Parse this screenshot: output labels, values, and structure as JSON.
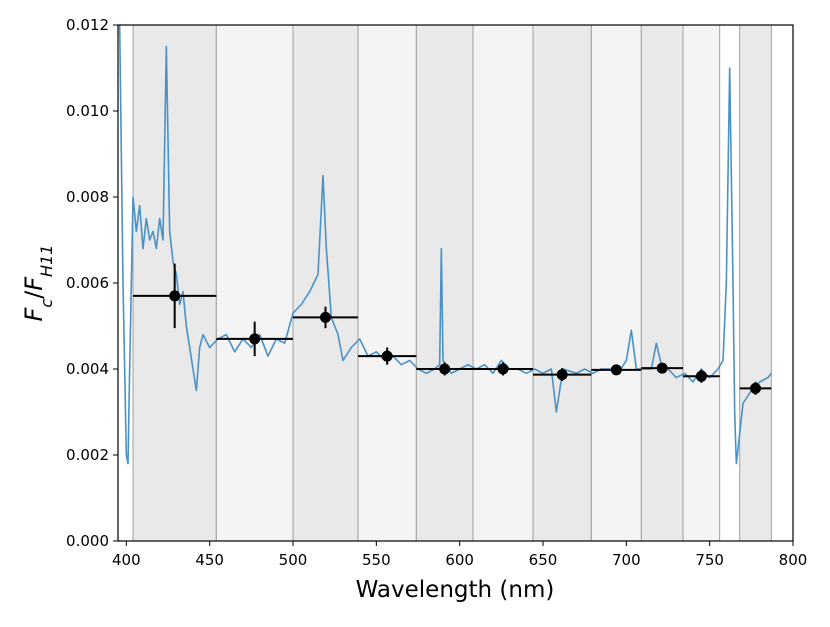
{
  "chart_data": {
    "type": "line",
    "xlabel": "Wavelength (nm)",
    "ylabel": [
      "F",
      "c",
      "/",
      "F",
      "H11"
    ],
    "xlim": [
      395,
      800
    ],
    "ylim": [
      0,
      0.012
    ],
    "xticks": [
      400,
      450,
      500,
      550,
      600,
      650,
      700,
      750,
      800
    ],
    "yticks": [
      {
        "value": 0,
        "label": "0.000"
      },
      {
        "value": 0.002,
        "label": "0.002"
      },
      {
        "value": 0.004,
        "label": "0.004"
      },
      {
        "value": 0.006,
        "label": "0.006"
      },
      {
        "value": 0.008,
        "label": "0.008"
      },
      {
        "value": 0.01,
        "label": "0.010"
      },
      {
        "value": 0.012,
        "label": "0.012"
      }
    ],
    "bands": [
      [
        404,
        454
      ],
      [
        454,
        500
      ],
      [
        500,
        539
      ],
      [
        539,
        574
      ],
      [
        574,
        608
      ],
      [
        608,
        644
      ],
      [
        644,
        679
      ],
      [
        679,
        709
      ],
      [
        709,
        734
      ],
      [
        734,
        756
      ],
      [
        768,
        787
      ]
    ],
    "band_colors": [
      "#e9e9e9",
      "#f4f4f4",
      "#e9e9e9",
      "#f4f4f4",
      "#e9e9e9",
      "#f4f4f4",
      "#e9e9e9",
      "#f4f4f4",
      "#e9e9e9",
      "#f4f4f4",
      "#e9e9e9"
    ],
    "band_edge_color": "#a0a0a0",
    "series": [
      {
        "type": "line",
        "color": "#4a92c6",
        "x": [
          396,
          398,
          400,
          401,
          402,
          404,
          406,
          408,
          410,
          412,
          414,
          416,
          418,
          420,
          422,
          424,
          426,
          428,
          430,
          432,
          434,
          436,
          438,
          440,
          442,
          444,
          446,
          450,
          455,
          460,
          465,
          470,
          475,
          480,
          485,
          490,
          495,
          500,
          505,
          510,
          515,
          518,
          520,
          523,
          527,
          530,
          535,
          540,
          545,
          550,
          555,
          560,
          565,
          570,
          575,
          580,
          585,
          588,
          589,
          590,
          595,
          600,
          605,
          610,
          615,
          620,
          625,
          630,
          635,
          640,
          645,
          650,
          655,
          658,
          662,
          670,
          675,
          680,
          685,
          690,
          695,
          700,
          703,
          706,
          710,
          715,
          718,
          721,
          725,
          730,
          735,
          740,
          745,
          750,
          755,
          758,
          760,
          762,
          764,
          765,
          766,
          768,
          770,
          775,
          780,
          785,
          787
        ],
        "values": [
          0.012,
          0.006,
          0.002,
          0.0018,
          0.004,
          0.008,
          0.0072,
          0.0078,
          0.0068,
          0.0075,
          0.007,
          0.0072,
          0.0068,
          0.0075,
          0.007,
          0.0115,
          0.0072,
          0.0065,
          0.0062,
          0.0055,
          0.0058,
          0.005,
          0.0045,
          0.004,
          0.0035,
          0.0045,
          0.0048,
          0.0045,
          0.0047,
          0.0048,
          0.0044,
          0.0047,
          0.0045,
          0.0048,
          0.0043,
          0.0047,
          0.0046,
          0.0053,
          0.0055,
          0.0058,
          0.0062,
          0.0085,
          0.0068,
          0.0052,
          0.0048,
          0.0042,
          0.0045,
          0.0047,
          0.0043,
          0.0044,
          0.0042,
          0.0043,
          0.0041,
          0.0042,
          0.004,
          0.0039,
          0.004,
          0.0041,
          0.0068,
          0.0042,
          0.0039,
          0.004,
          0.0041,
          0.004,
          0.0041,
          0.0039,
          0.0042,
          0.004,
          0.004,
          0.0039,
          0.004,
          0.0039,
          0.004,
          0.003,
          0.004,
          0.0039,
          0.004,
          0.0039,
          0.004,
          0.004,
          0.0039,
          0.0042,
          0.0049,
          0.004,
          0.004,
          0.004,
          0.0046,
          0.0041,
          0.004,
          0.0038,
          0.0039,
          0.0037,
          0.004,
          0.0038,
          0.004,
          0.0042,
          0.006,
          0.011,
          0.006,
          0.003,
          0.0018,
          0.0025,
          0.0032,
          0.0035,
          0.0037,
          0.0038,
          0.0039
        ]
      },
      {
        "type": "errorbar",
        "color": "#000000",
        "x": [
          429,
          477,
          519.5,
          556.5,
          591,
          626,
          661.5,
          694,
          721.5,
          745,
          777.5
        ],
        "xerr": [
          25,
          23,
          19.5,
          17.5,
          17,
          18,
          17.5,
          15,
          12.5,
          11,
          9.5
        ],
        "values": [
          0.0057,
          0.0047,
          0.0052,
          0.0043,
          0.004,
          0.004,
          0.00387,
          0.00398,
          0.00402,
          0.00383,
          0.00355
        ],
        "yerr": [
          0.00075,
          0.0004,
          0.00025,
          0.0002,
          0.00015,
          0.00015,
          0.00015,
          0.00012,
          0.00012,
          0.00015,
          0.00015
        ]
      }
    ]
  }
}
